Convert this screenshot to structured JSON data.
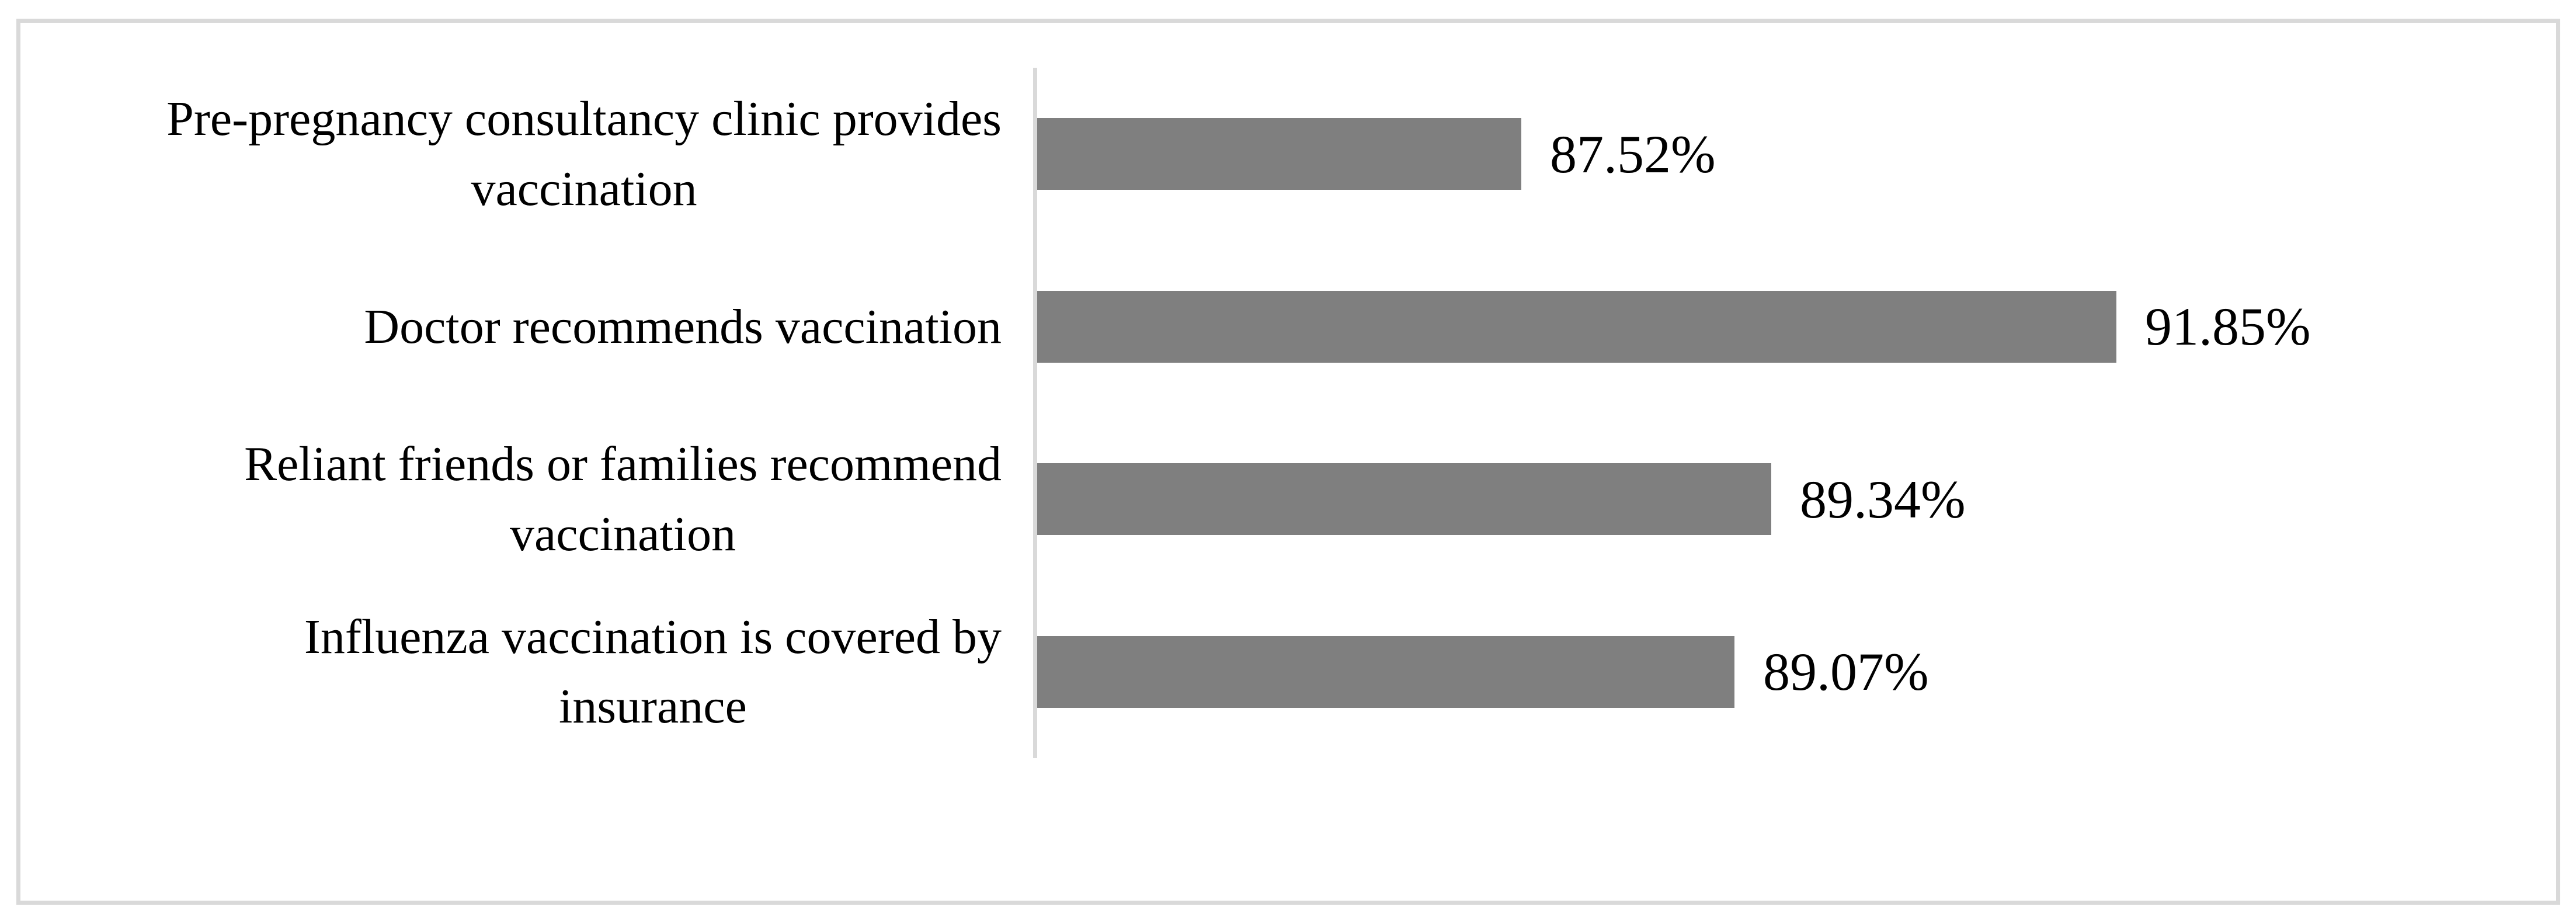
{
  "chart_data": {
    "type": "bar",
    "orientation": "horizontal",
    "title": "",
    "xlabel": "",
    "ylabel": "",
    "categories": [
      "Doctor recommends vaccination",
      "Reliant friends or families recommend\nvaccination",
      "Influenza vaccination is covered by\ninsurance",
      "Pre-pregnancy consultancy clinic provides\nvaccination"
    ],
    "values": [
      91.85,
      89.34,
      89.07,
      87.52
    ],
    "value_labels": [
      "91.85%",
      "89.34%",
      "89.07%",
      "87.52%"
    ],
    "xlim": [
      84,
      95
    ],
    "grid": false,
    "legend_position": "none",
    "bar_color": "#7f7f7f",
    "axis_color": "#d9d9d9",
    "border_color": "#d9d9d9",
    "text_color": "#000000",
    "background_color": "#ffffff"
  }
}
